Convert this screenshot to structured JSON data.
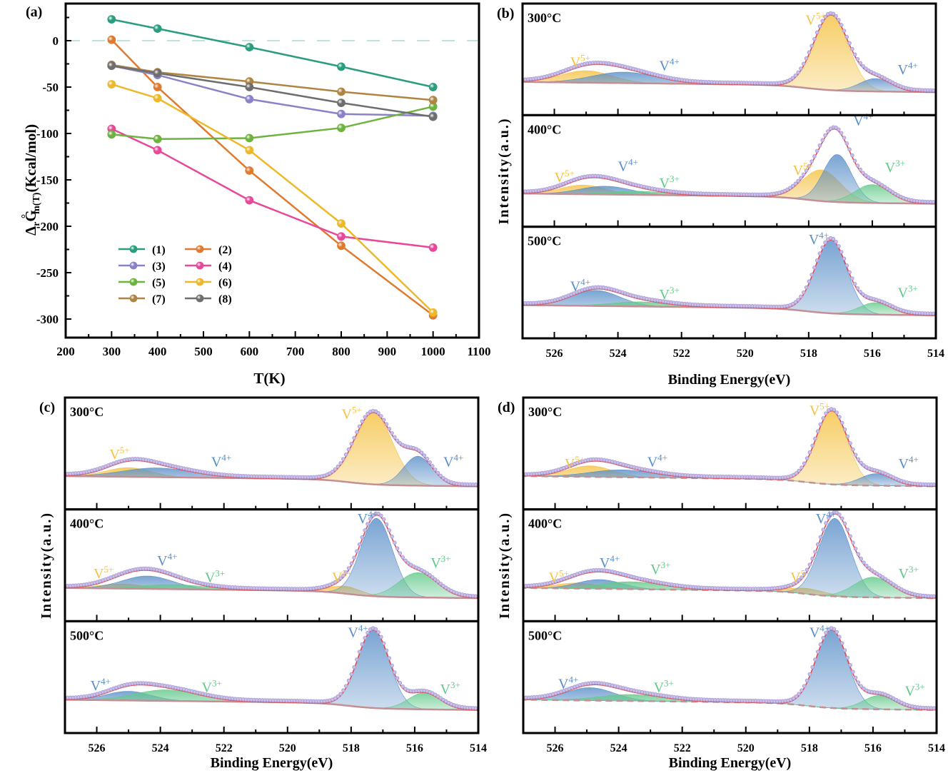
{
  "chart_data": [
    {
      "id": "a",
      "panel_label": "(a)",
      "type": "line",
      "title": "",
      "xlabel": "T(K)",
      "ylabel": "ΔrG°m(T)(Kcal/mol)",
      "ylabel_parts": {
        "delta": "Δ",
        "sub_r": "r",
        "G": "G",
        "deg": "°",
        "sub_mT": "m(T)",
        "unit": "(Kcal/mol)"
      },
      "xlim": [
        200,
        1100
      ],
      "ylim": [
        -320,
        40
      ],
      "xticks": [
        200,
        300,
        400,
        500,
        600,
        700,
        800,
        900,
        1000,
        1100
      ],
      "yticks": [
        0,
        -50,
        -100,
        -150,
        -200,
        -250,
        -300
      ],
      "reference_line": {
        "y": 0,
        "style": "dashed",
        "color": "#bfe3da"
      },
      "legend_position": "lower-left",
      "x": [
        300,
        400,
        600,
        800,
        1000
      ],
      "series": [
        {
          "name": "(1)",
          "color": "#2a9d7f",
          "values": [
            23,
            13,
            -7,
            -28,
            -50
          ]
        },
        {
          "name": "(2)",
          "color": "#e07a2e",
          "values": [
            1,
            -50,
            -140,
            -221,
            -296
          ]
        },
        {
          "name": "(3)",
          "color": "#8a82c6",
          "values": [
            -27,
            -37,
            -63,
            -79,
            -81
          ]
        },
        {
          "name": "(4)",
          "color": "#e8489a",
          "values": [
            -95,
            -118,
            -172,
            -211,
            -223
          ]
        },
        {
          "name": "(5)",
          "color": "#6db33f",
          "values": [
            -101,
            -106,
            -105,
            -94,
            -71
          ]
        },
        {
          "name": "(6)",
          "color": "#edb829",
          "values": [
            -47,
            -62,
            -118,
            -197,
            -293
          ]
        },
        {
          "name": "(7)",
          "color": "#b08442",
          "values": [
            -26,
            -34,
            -44,
            -55,
            -64
          ]
        },
        {
          "name": "(8)",
          "color": "#6e6e6e",
          "values": [
            -27,
            -35,
            -50,
            -67,
            -82
          ]
        }
      ]
    },
    {
      "id": "b",
      "panel_label": "(b)",
      "type": "area",
      "xlabel": "Binding Energy(eV)",
      "ylabel": "Intensity(a.u.)",
      "xlim": [
        527,
        514
      ],
      "xticks": [
        526,
        524,
        522,
        520,
        518,
        516,
        514
      ],
      "subplots": [
        {
          "label": "300°C",
          "peaks": [
            {
              "state": "V5+",
              "center": 525.0,
              "height": 0.13,
              "width": 0.8
            },
            {
              "state": "V4+",
              "center": 523.8,
              "height": 0.12,
              "width": 1.0
            },
            {
              "state": "V5+",
              "center": 517.3,
              "height": 0.82,
              "width": 0.55
            },
            {
              "state": "V4+",
              "center": 515.9,
              "height": 0.14,
              "width": 0.5
            }
          ],
          "annotations": [
            {
              "text": "V",
              "sup": "5+",
              "x": 525.5,
              "y": 0.26,
              "state": "V5+"
            },
            {
              "text": "V",
              "sup": "4+",
              "x": 522.7,
              "y": 0.22,
              "state": "V4+"
            },
            {
              "text": "V",
              "sup": "5+",
              "x": 518.1,
              "y": 0.72,
              "state": "V5+"
            },
            {
              "text": "V",
              "sup": "4+",
              "x": 515.2,
              "y": 0.18,
              "state": "V4+"
            }
          ]
        },
        {
          "label": "400°C",
          "peaks": [
            {
              "state": "V5+",
              "center": 525.1,
              "height": 0.1,
              "width": 0.7
            },
            {
              "state": "V4+",
              "center": 524.4,
              "height": 0.09,
              "width": 0.8
            },
            {
              "state": "V3+",
              "center": 523.4,
              "height": 0.04,
              "width": 0.9
            },
            {
              "state": "V5+",
              "center": 517.6,
              "height": 0.34,
              "width": 0.6
            },
            {
              "state": "V4+",
              "center": 517.1,
              "height": 0.52,
              "width": 0.45
            },
            {
              "state": "V3+",
              "center": 516.0,
              "height": 0.2,
              "width": 0.55
            }
          ],
          "annotations": [
            {
              "text": "V",
              "sup": "5+",
              "x": 526.0,
              "y": 0.22,
              "state": "V5+"
            },
            {
              "text": "V",
              "sup": "4+",
              "x": 524.0,
              "y": 0.34,
              "state": "V4+"
            },
            {
              "text": "V",
              "sup": "3+",
              "x": 522.7,
              "y": 0.16,
              "state": "V3+"
            },
            {
              "text": "V",
              "sup": "5+",
              "x": 518.5,
              "y": 0.3,
              "state": "V5+"
            },
            {
              "text": "V",
              "sup": "4+",
              "x": 516.6,
              "y": 0.84,
              "state": "V4+"
            },
            {
              "text": "V",
              "sup": "3+",
              "x": 515.6,
              "y": 0.33,
              "state": "V3+"
            }
          ]
        },
        {
          "label": "500°C",
          "peaks": [
            {
              "state": "V4+",
              "center": 524.7,
              "height": 0.17,
              "width": 0.75
            },
            {
              "state": "V3+",
              "center": 523.3,
              "height": 0.05,
              "width": 0.9
            },
            {
              "state": "V4+",
              "center": 517.3,
              "height": 0.8,
              "width": 0.5
            },
            {
              "state": "V3+",
              "center": 515.9,
              "height": 0.13,
              "width": 0.5
            }
          ],
          "annotations": [
            {
              "text": "V",
              "sup": "4+",
              "x": 525.5,
              "y": 0.25,
              "state": "V4+"
            },
            {
              "text": "V",
              "sup": "3+",
              "x": 522.7,
              "y": 0.16,
              "state": "V3+"
            },
            {
              "text": "V",
              "sup": "4+",
              "x": 518.0,
              "y": 0.76,
              "state": "V4+"
            },
            {
              "text": "V",
              "sup": "3+",
              "x": 515.2,
              "y": 0.18,
              "state": "V3+"
            }
          ]
        }
      ]
    },
    {
      "id": "c",
      "panel_label": "(c)",
      "type": "area",
      "xlabel": "Binding Energy(eV)",
      "ylabel": "Intensity(a.u.)",
      "xlim": [
        527,
        514
      ],
      "xticks": [
        526,
        524,
        522,
        520,
        518,
        516,
        514
      ],
      "subplots": [
        {
          "label": "300°C",
          "peaks": [
            {
              "state": "V5+",
              "center": 525.0,
              "height": 0.1,
              "width": 0.7
            },
            {
              "state": "V4+",
              "center": 524.1,
              "height": 0.1,
              "width": 1.1
            },
            {
              "state": "V5+",
              "center": 517.3,
              "height": 0.78,
              "width": 0.6
            },
            {
              "state": "V4+",
              "center": 515.9,
              "height": 0.32,
              "width": 0.45
            }
          ],
          "annotations": [
            {
              "text": "V",
              "sup": "5+",
              "x": 525.6,
              "y": 0.28,
              "state": "V5+"
            },
            {
              "text": "V",
              "sup": "4+",
              "x": 522.4,
              "y": 0.2,
              "state": "V4+"
            },
            {
              "text": "V",
              "sup": "5+",
              "x": 518.3,
              "y": 0.72,
              "state": "V5+"
            },
            {
              "text": "V",
              "sup": "4+",
              "x": 515.1,
              "y": 0.2,
              "state": "V4+"
            }
          ]
        },
        {
          "label": "400°C",
          "peaks": [
            {
              "state": "V5+",
              "center": 525.2,
              "height": 0.05,
              "width": 0.7
            },
            {
              "state": "V4+",
              "center": 524.4,
              "height": 0.14,
              "width": 0.8
            },
            {
              "state": "V3+",
              "center": 523.6,
              "height": 0.05,
              "width": 1.0
            },
            {
              "state": "V5+",
              "center": 518.2,
              "height": 0.08,
              "width": 0.5
            },
            {
              "state": "V4+",
              "center": 517.2,
              "height": 0.85,
              "width": 0.5
            },
            {
              "state": "V3+",
              "center": 515.9,
              "height": 0.27,
              "width": 0.6
            }
          ],
          "annotations": [
            {
              "text": "V",
              "sup": "5+",
              "x": 526.1,
              "y": 0.2,
              "state": "V5+"
            },
            {
              "text": "V",
              "sup": "4+",
              "x": 524.1,
              "y": 0.34,
              "state": "V4+"
            },
            {
              "text": "V",
              "sup": "3+",
              "x": 522.6,
              "y": 0.16,
              "state": "V3+"
            },
            {
              "text": "V",
              "sup": "5+",
              "x": 518.6,
              "y": 0.16,
              "state": "V5+"
            },
            {
              "text": "V",
              "sup": "4+",
              "x": 517.8,
              "y": 0.8,
              "state": "V4+"
            },
            {
              "text": "V",
              "sup": "3+",
              "x": 515.5,
              "y": 0.32,
              "state": "V3+"
            }
          ]
        },
        {
          "label": "500°C",
          "peaks": [
            {
              "state": "V4+",
              "center": 525.0,
              "height": 0.1,
              "width": 0.7
            },
            {
              "state": "V3+",
              "center": 523.8,
              "height": 0.12,
              "width": 1.0
            },
            {
              "state": "V4+",
              "center": 517.3,
              "height": 0.85,
              "width": 0.5
            },
            {
              "state": "V3+",
              "center": 515.7,
              "height": 0.18,
              "width": 0.5
            }
          ],
          "annotations": [
            {
              "text": "V",
              "sup": "4+",
              "x": 526.2,
              "y": 0.2,
              "state": "V4+"
            },
            {
              "text": "V",
              "sup": "3+",
              "x": 522.7,
              "y": 0.18,
              "state": "V3+"
            },
            {
              "text": "V",
              "sup": "4+",
              "x": 518.1,
              "y": 0.78,
              "state": "V4+"
            },
            {
              "text": "V",
              "sup": "3+",
              "x": 515.2,
              "y": 0.16,
              "state": "V3+"
            }
          ]
        }
      ]
    },
    {
      "id": "d",
      "panel_label": "(d)",
      "type": "area",
      "xlabel": "Binding Energy(eV)",
      "ylabel": "Intensity(a.u.)",
      "xlim": [
        527,
        514
      ],
      "xticks": [
        526,
        524,
        522,
        520,
        518,
        516,
        514
      ],
      "subplots": [
        {
          "label": "300°C",
          "peaks": [
            {
              "state": "V5+",
              "center": 524.9,
              "height": 0.12,
              "width": 0.7
            },
            {
              "state": "V4+",
              "center": 523.9,
              "height": 0.08,
              "width": 1.0
            },
            {
              "state": "V5+",
              "center": 517.3,
              "height": 0.8,
              "width": 0.5
            },
            {
              "state": "V4+",
              "center": 515.9,
              "height": 0.13,
              "width": 0.5
            }
          ],
          "annotations": [
            {
              "text": "V",
              "sup": "5+",
              "x": 525.7,
              "y": 0.18,
              "state": "V5+"
            },
            {
              "text": "V",
              "sup": "4+",
              "x": 523.1,
              "y": 0.2,
              "state": "V4+"
            },
            {
              "text": "V",
              "sup": "5+",
              "x": 518.0,
              "y": 0.76,
              "state": "V5+"
            },
            {
              "text": "V",
              "sup": "4+",
              "x": 515.2,
              "y": 0.18,
              "state": "V4+"
            }
          ]
        },
        {
          "label": "400°C",
          "peaks": [
            {
              "state": "V5+",
              "center": 525.3,
              "height": 0.06,
              "width": 0.7
            },
            {
              "state": "V4+",
              "center": 524.6,
              "height": 0.1,
              "width": 0.7
            },
            {
              "state": "V3+",
              "center": 523.6,
              "height": 0.08,
              "width": 1.0
            },
            {
              "state": "V5+",
              "center": 518.1,
              "height": 0.06,
              "width": 0.6
            },
            {
              "state": "V4+",
              "center": 517.2,
              "height": 0.85,
              "width": 0.5
            },
            {
              "state": "V3+",
              "center": 516.0,
              "height": 0.22,
              "width": 0.6
            }
          ],
          "annotations": [
            {
              "text": "V",
              "sup": "5+",
              "x": 526.2,
              "y": 0.16,
              "state": "V5+"
            },
            {
              "text": "V",
              "sup": "4+",
              "x": 524.6,
              "y": 0.32,
              "state": "V4+"
            },
            {
              "text": "V",
              "sup": "3+",
              "x": 523.0,
              "y": 0.25,
              "state": "V3+"
            },
            {
              "text": "V",
              "sup": "5+",
              "x": 518.6,
              "y": 0.16,
              "state": "V5+"
            },
            {
              "text": "V",
              "sup": "4+",
              "x": 517.8,
              "y": 0.8,
              "state": "V4+"
            },
            {
              "text": "V",
              "sup": "3+",
              "x": 515.2,
              "y": 0.2,
              "state": "V3+"
            }
          ]
        },
        {
          "label": "500°C",
          "peaks": [
            {
              "state": "V4+",
              "center": 524.9,
              "height": 0.14,
              "width": 0.75
            },
            {
              "state": "V3+",
              "center": 523.6,
              "height": 0.07,
              "width": 1.0
            },
            {
              "state": "V4+",
              "center": 517.3,
              "height": 0.85,
              "width": 0.5
            },
            {
              "state": "V3+",
              "center": 515.8,
              "height": 0.15,
              "width": 0.5
            }
          ],
          "annotations": [
            {
              "text": "V",
              "sup": "4+",
              "x": 525.9,
              "y": 0.22,
              "state": "V4+"
            },
            {
              "text": "V",
              "sup": "3+",
              "x": 522.9,
              "y": 0.18,
              "state": "V3+"
            },
            {
              "text": "V",
              "sup": "4+",
              "x": 518.0,
              "y": 0.78,
              "state": "V4+"
            },
            {
              "text": "V",
              "sup": "3+",
              "x": 515.0,
              "y": 0.14,
              "state": "V3+"
            }
          ]
        }
      ]
    }
  ],
  "state_colors": {
    "V5+": "#f5c242",
    "V4+": "#5a8fc8",
    "V3+": "#62c98a"
  },
  "style_colors": {
    "raw_points": "#a79bd4",
    "fit_envelope": "#e8474a",
    "background": "#c48f94",
    "axis": "#000000"
  }
}
